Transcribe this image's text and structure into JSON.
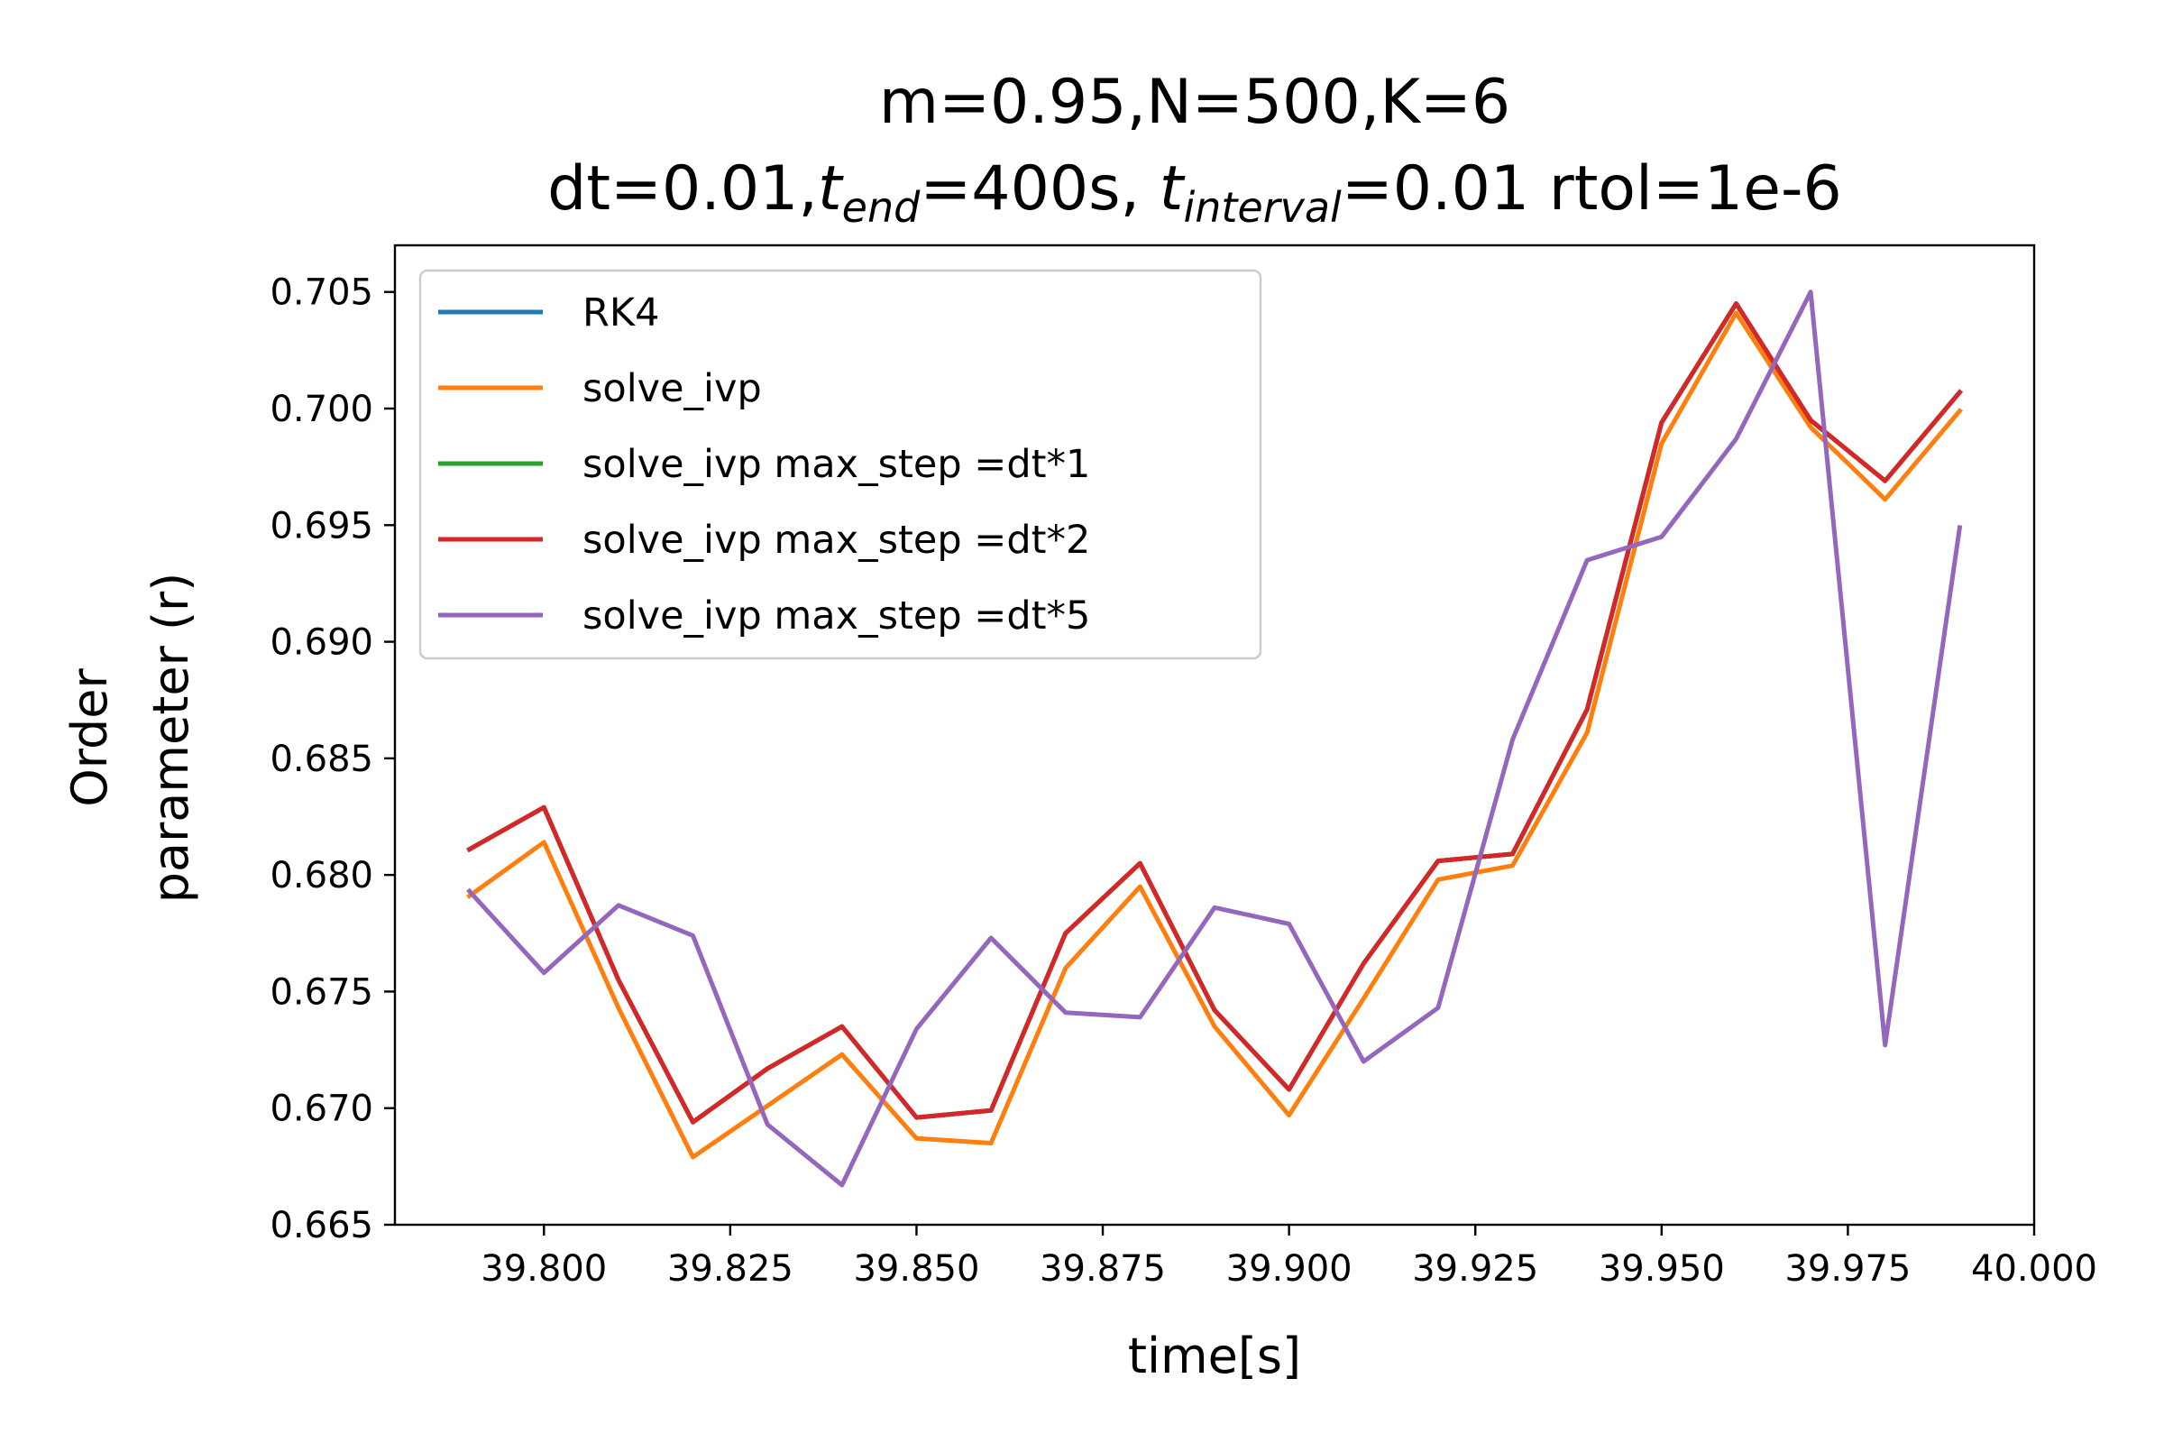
{
  "chart_data": {
    "type": "line",
    "title": {
      "line1": "m=0.95,N=500,K=6",
      "line2_parts": [
        "dt=0.01,",
        "t",
        "end",
        "=400s, ",
        "t",
        "interval",
        "=0.01 rtol=1e-6"
      ]
    },
    "xlabel": "time[s]",
    "ylabel": [
      "Order",
      "parameter (r)"
    ],
    "xlim": [
      39.78,
      40.0
    ],
    "ylim": [
      0.665,
      0.707
    ],
    "xticks": [
      "39.800",
      "39.825",
      "39.850",
      "39.875",
      "39.900",
      "39.925",
      "39.950",
      "39.975",
      "40.000"
    ],
    "xtick_values": [
      39.8,
      39.825,
      39.85,
      39.875,
      39.9,
      39.925,
      39.95,
      39.975,
      40.0
    ],
    "yticks": [
      "0.665",
      "0.670",
      "0.675",
      "0.680",
      "0.685",
      "0.690",
      "0.695",
      "0.700",
      "0.705"
    ],
    "ytick_values": [
      0.665,
      0.67,
      0.675,
      0.68,
      0.685,
      0.69,
      0.695,
      0.7,
      0.705
    ],
    "grid": false,
    "legend_position": "upper-left",
    "x": [
      39.79,
      39.8,
      39.81,
      39.82,
      39.83,
      39.84,
      39.85,
      39.86,
      39.87,
      39.88,
      39.89,
      39.9,
      39.91,
      39.92,
      39.93,
      39.94,
      39.95,
      39.96,
      39.97,
      39.98,
      39.99
    ],
    "series": [
      {
        "name": "RK4",
        "color": "#1f77b4",
        "values": [
          0.6811,
          0.6829,
          0.6755,
          0.6694,
          0.6717,
          0.6735,
          0.6696,
          0.6699,
          0.6775,
          0.6805,
          0.6742,
          0.6708,
          0.6762,
          0.6806,
          0.6809,
          0.6871,
          0.6994,
          0.7045,
          0.6995,
          0.6969,
          0.7007
        ]
      },
      {
        "name": "solve_ivp",
        "color": "#ff7f0e",
        "values": [
          0.6791,
          0.6814,
          0.6743,
          0.6679,
          0.6701,
          0.6723,
          0.6687,
          0.6685,
          0.676,
          0.6795,
          0.6735,
          0.6697,
          0.6747,
          0.6798,
          0.6804,
          0.6861,
          0.6985,
          0.7041,
          0.6992,
          0.6961,
          0.6999
        ]
      },
      {
        "name": "solve_ivp max_step =dt*1",
        "color": "#2ca02c",
        "values": [
          0.6811,
          0.6829,
          0.6755,
          0.6694,
          0.6717,
          0.6735,
          0.6696,
          0.6699,
          0.6775,
          0.6805,
          0.6742,
          0.6708,
          0.6762,
          0.6806,
          0.6809,
          0.6871,
          0.6994,
          0.7045,
          0.6995,
          0.6969,
          0.7007
        ]
      },
      {
        "name": "solve_ivp max_step =dt*2",
        "color": "#d62728",
        "values": [
          0.6811,
          0.6829,
          0.6755,
          0.6694,
          0.6717,
          0.6735,
          0.6696,
          0.6699,
          0.6775,
          0.6805,
          0.6742,
          0.6708,
          0.6762,
          0.6806,
          0.6809,
          0.6871,
          0.6994,
          0.7045,
          0.6995,
          0.6969,
          0.7007
        ]
      },
      {
        "name": "solve_ivp max_step =dt*5",
        "color": "#9467bd",
        "values": [
          0.6793,
          0.6758,
          0.6787,
          0.6774,
          0.6693,
          0.6667,
          0.6734,
          0.6773,
          0.6741,
          0.6739,
          0.6786,
          0.6779,
          0.672,
          0.6743,
          0.6858,
          0.6935,
          0.6945,
          0.6987,
          0.705,
          0.6727,
          0.6949
        ]
      }
    ]
  }
}
